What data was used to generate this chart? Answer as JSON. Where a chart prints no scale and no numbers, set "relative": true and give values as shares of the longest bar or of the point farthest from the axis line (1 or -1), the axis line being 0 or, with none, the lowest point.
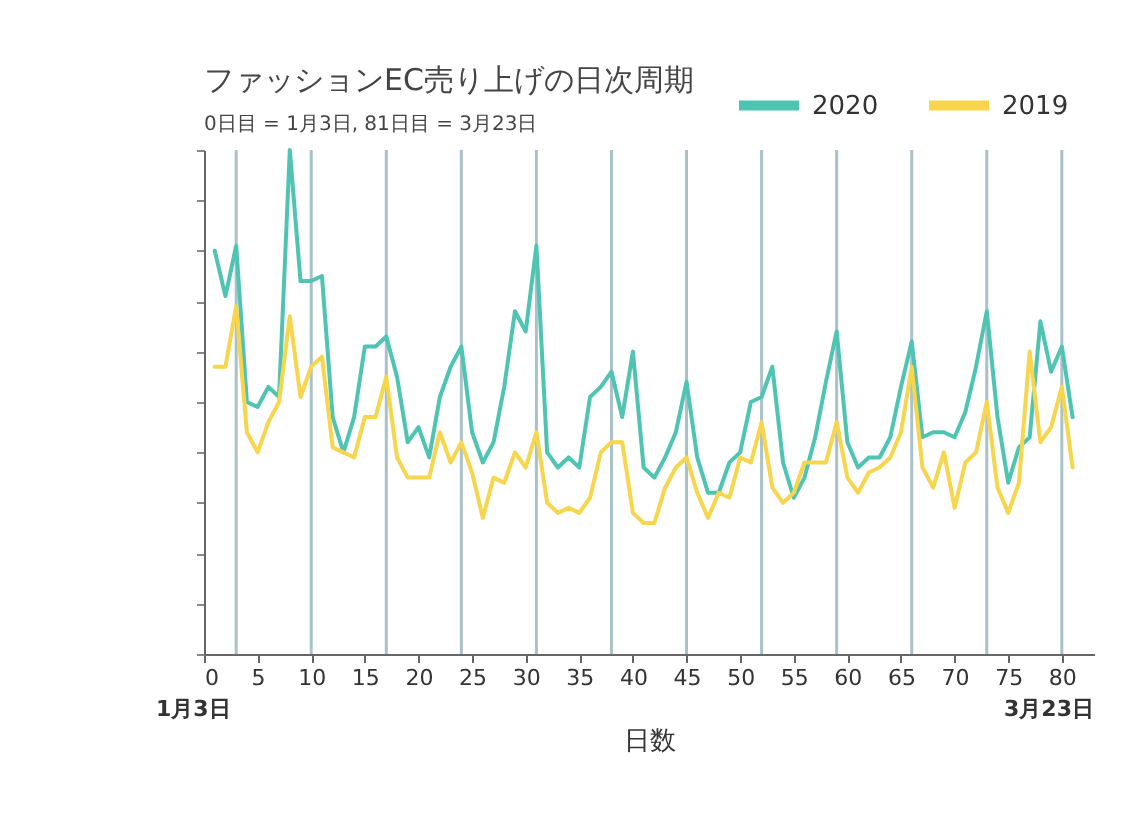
{
  "chart_data": {
    "type": "line",
    "title": "ファッションEC売り上げの日次周期",
    "subtitle": "0日目 = 1月3日, 81日目 = 3月23日",
    "xlabel": "日数",
    "relative": true,
    "tick_labels": "x",
    "legend": "top right",
    "line_style": "solid",
    "xlim": [
      0,
      83
    ],
    "xticks": [
      0,
      5,
      10,
      15,
      20,
      25,
      30,
      35,
      40,
      45,
      50,
      55,
      60,
      65,
      70,
      75,
      80
    ],
    "x": [
      1,
      2,
      3,
      4,
      5,
      6,
      7,
      8,
      9,
      10,
      11,
      12,
      13,
      14,
      15,
      16,
      17,
      18,
      19,
      20,
      21,
      22,
      23,
      24,
      25,
      26,
      27,
      28,
      29,
      30,
      31,
      32,
      33,
      34,
      35,
      36,
      37,
      38,
      39,
      40,
      41,
      42,
      43,
      44,
      45,
      46,
      47,
      48,
      49,
      50,
      51,
      52,
      53,
      54,
      55,
      56,
      57,
      58,
      59,
      60,
      61,
      62,
      63,
      64,
      65,
      66,
      67,
      68,
      69,
      70,
      71,
      72,
      73,
      74,
      75,
      76,
      77,
      78,
      79,
      80,
      81
    ],
    "series": [
      {
        "name": "2020",
        "color": "#4fc4b3",
        "values": [
          0.8,
          0.71,
          0.81,
          0.5,
          0.49,
          0.53,
          0.51,
          1.0,
          0.74,
          0.74,
          0.75,
          0.47,
          0.4,
          0.47,
          0.61,
          0.61,
          0.63,
          0.55,
          0.42,
          0.45,
          0.39,
          0.51,
          0.57,
          0.61,
          0.44,
          0.38,
          0.42,
          0.53,
          0.68,
          0.64,
          0.81,
          0.4,
          0.37,
          0.39,
          0.37,
          0.51,
          0.53,
          0.56,
          0.47,
          0.6,
          0.37,
          0.35,
          0.39,
          0.44,
          0.54,
          0.39,
          0.32,
          0.32,
          0.38,
          0.4,
          0.5,
          0.51,
          0.57,
          0.38,
          0.31,
          0.35,
          0.43,
          0.54,
          0.64,
          0.42,
          0.37,
          0.39,
          0.39,
          0.43,
          0.53,
          0.62,
          0.43,
          0.44,
          0.44,
          0.43,
          0.48,
          0.57,
          0.68,
          0.47,
          0.34,
          0.41,
          0.43,
          0.66,
          0.56,
          0.61,
          0.47
        ]
      },
      {
        "name": "2019",
        "color": "#f7d54c",
        "values": [
          0.57,
          0.57,
          0.69,
          0.44,
          0.4,
          0.46,
          0.5,
          0.67,
          0.51,
          0.57,
          0.59,
          0.41,
          0.4,
          0.39,
          0.47,
          0.47,
          0.55,
          0.39,
          0.35,
          0.35,
          0.35,
          0.44,
          0.38,
          0.42,
          0.36,
          0.27,
          0.35,
          0.34,
          0.4,
          0.37,
          0.44,
          0.3,
          0.28,
          0.29,
          0.28,
          0.31,
          0.4,
          0.42,
          0.42,
          0.28,
          0.26,
          0.26,
          0.33,
          0.37,
          0.39,
          0.32,
          0.27,
          0.32,
          0.31,
          0.39,
          0.38,
          0.46,
          0.33,
          0.3,
          0.32,
          0.38,
          0.38,
          0.38,
          0.46,
          0.35,
          0.32,
          0.36,
          0.37,
          0.39,
          0.44,
          0.57,
          0.37,
          0.33,
          0.4,
          0.29,
          0.38,
          0.4,
          0.5,
          0.33,
          0.28,
          0.34,
          0.6,
          0.42,
          0.45,
          0.53,
          0.37
        ]
      }
    ],
    "ref_lines": [
      {
        "axis": "x",
        "value": 3,
        "color": "#a9c2ca"
      },
      {
        "axis": "x",
        "value": 10,
        "color": "#a9c2ca"
      },
      {
        "axis": "x",
        "value": 17,
        "color": "#a9c2ca"
      },
      {
        "axis": "x",
        "value": 24,
        "color": "#a9c2ca"
      },
      {
        "axis": "x",
        "value": 31,
        "color": "#a9c2ca"
      },
      {
        "axis": "x",
        "value": 38,
        "color": "#a9c2ca"
      },
      {
        "axis": "x",
        "value": 45,
        "color": "#a9c2ca"
      },
      {
        "axis": "x",
        "value": 52,
        "color": "#a9c2ca"
      },
      {
        "axis": "x",
        "value": 59,
        "color": "#a9c2ca"
      },
      {
        "axis": "x",
        "value": 66,
        "color": "#a9c2ca"
      },
      {
        "axis": "x",
        "value": 73,
        "color": "#a9c2ca"
      },
      {
        "axis": "x",
        "value": 80,
        "color": "#a9c2ca"
      }
    ],
    "annotations": [
      "1月3日",
      "3月23日"
    ]
  }
}
